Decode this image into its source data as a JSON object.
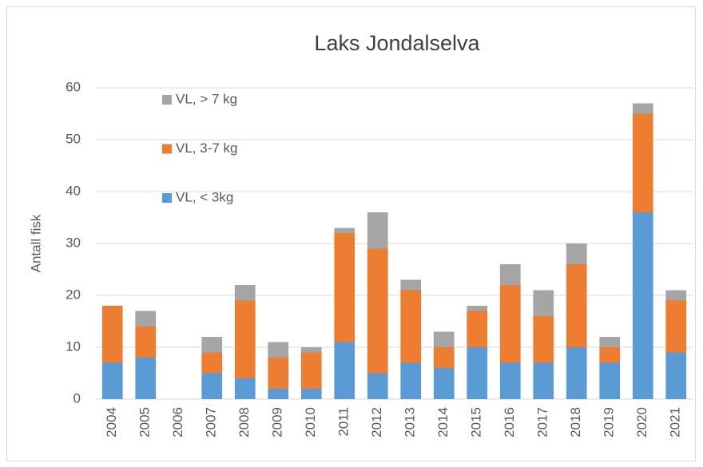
{
  "chart_data": {
    "type": "bar",
    "stacked": true,
    "title": "Laks Jondalselva",
    "y_label": "Antall fisk",
    "categories": [
      "2004",
      "2005",
      "2006",
      "2007",
      "2008",
      "2009",
      "2010",
      "2011",
      "2012",
      "2013",
      "2014",
      "2015",
      "2016",
      "2017",
      "2018",
      "2019",
      "2020",
      "2021"
    ],
    "series": [
      {
        "name": "VL, < 3kg",
        "color": "#5b9bd5",
        "values": [
          7,
          8,
          0,
          5,
          4,
          2,
          2,
          11,
          5,
          7,
          6,
          10,
          7,
          7,
          10,
          7,
          36,
          9
        ]
      },
      {
        "name": "VL, 3-7 kg",
        "color": "#ed7d31",
        "values": [
          11,
          6,
          0,
          4,
          15,
          6,
          7,
          21,
          24,
          14,
          4,
          7,
          15,
          9,
          16,
          3,
          19,
          10
        ]
      },
      {
        "name": "VL, > 7 kg",
        "color": "#a5a5a5",
        "values": [
          0,
          3,
          0,
          3,
          3,
          3,
          1,
          1,
          7,
          2,
          3,
          1,
          4,
          5,
          4,
          2,
          2,
          2
        ]
      }
    ],
    "ylim": [
      0,
      60
    ],
    "yticks": [
      0,
      10,
      20,
      30,
      40,
      50,
      60
    ],
    "grid": true,
    "legend": "top-left"
  }
}
